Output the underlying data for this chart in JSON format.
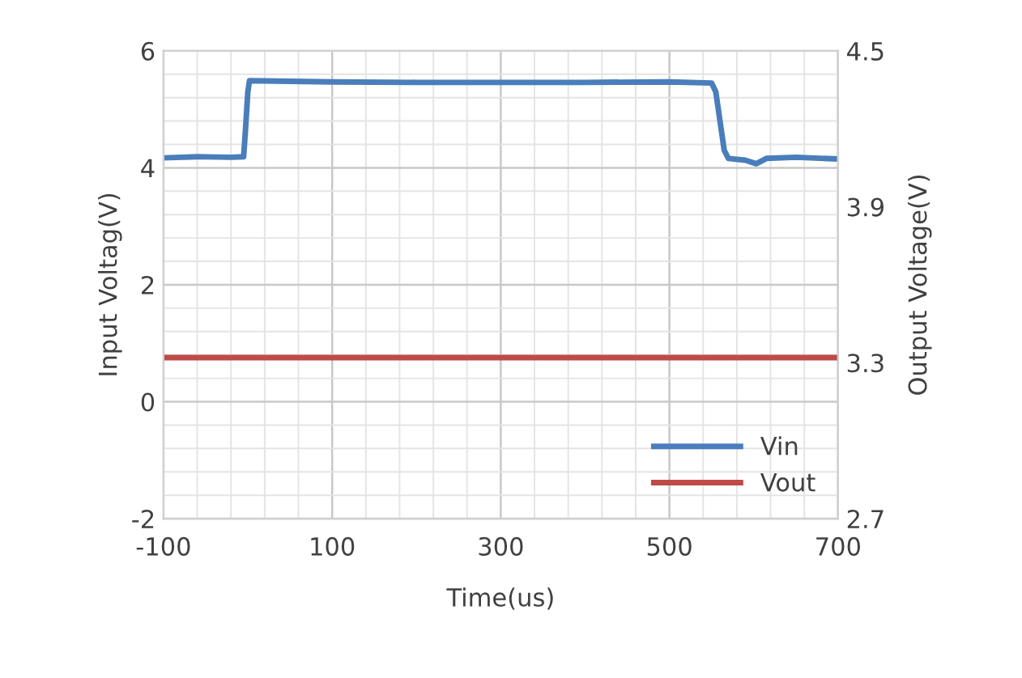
{
  "chart_data": {
    "type": "line",
    "xlabel": "Time(us)",
    "ylabel": "Input Voltag(V)",
    "y2label": "Output Voltage(V)",
    "xlim": [
      -100,
      700
    ],
    "xticks": [
      -100,
      100,
      300,
      500,
      700
    ],
    "ylim": [
      -2,
      6
    ],
    "yticks": [
      -2,
      0,
      2,
      4,
      6
    ],
    "y2lim": [
      2.7,
      4.5
    ],
    "y2ticks": [
      2.7,
      3.3,
      3.9,
      4.5
    ],
    "grid": true,
    "legend": "bottom right",
    "marker": "none",
    "line_style": "solid",
    "series": [
      {
        "name": "Vin",
        "color": "#4a7ebb",
        "x": [
          -100,
          -60,
          -20,
          -5,
          -3,
          0,
          2,
          100,
          200,
          300,
          400,
          500,
          550,
          555,
          560,
          565,
          570,
          590,
          603,
          615,
          650,
          700
        ],
        "values": [
          4.17,
          4.19,
          4.18,
          4.19,
          4.6,
          5.3,
          5.49,
          5.47,
          5.46,
          5.46,
          5.46,
          5.47,
          5.45,
          5.3,
          4.8,
          4.3,
          4.16,
          4.13,
          4.07,
          4.16,
          4.18,
          4.15
        ]
      },
      {
        "name": "Vout",
        "color": "#be4b48",
        "axis": "y2",
        "x": [
          -100,
          700
        ],
        "values": [
          3.32,
          3.32
        ]
      }
    ]
  }
}
